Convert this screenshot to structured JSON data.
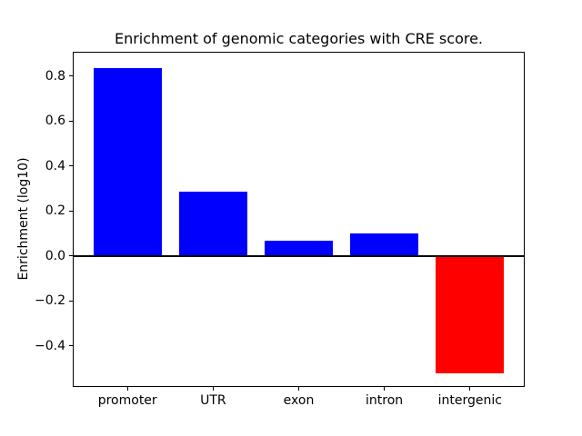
{
  "chart_data": {
    "type": "bar",
    "title": "Enrichment of genomic categories with CRE score.",
    "ylabel": "Enrichment (log10)",
    "categories": [
      "promoter",
      "UTR",
      "exon",
      "intron",
      "intergenic"
    ],
    "values": [
      0.835,
      0.285,
      0.067,
      0.1,
      -0.52
    ],
    "bar_colors": [
      "#0000ff",
      "#0000ff",
      "#0000ff",
      "#0000ff",
      "#ff0000"
    ],
    "yticks": [
      0.8,
      0.6,
      0.4,
      0.2,
      0.0,
      -0.2,
      -0.4
    ],
    "ytick_labels": [
      "0.8",
      "0.6",
      "0.4",
      "0.2",
      "0.0",
      "−0.2",
      "−0.4"
    ],
    "ylim": [
      -0.582,
      0.908
    ],
    "xlim": [
      -0.64,
      4.64
    ],
    "bar_width": 0.8,
    "zero_line": {
      "value": 0,
      "color": "#000000",
      "thickness": 2
    },
    "grid": false,
    "colors": {
      "positive": "#0000ff",
      "negative": "#ff0000",
      "axes": "#000000",
      "background": "#ffffff"
    }
  }
}
